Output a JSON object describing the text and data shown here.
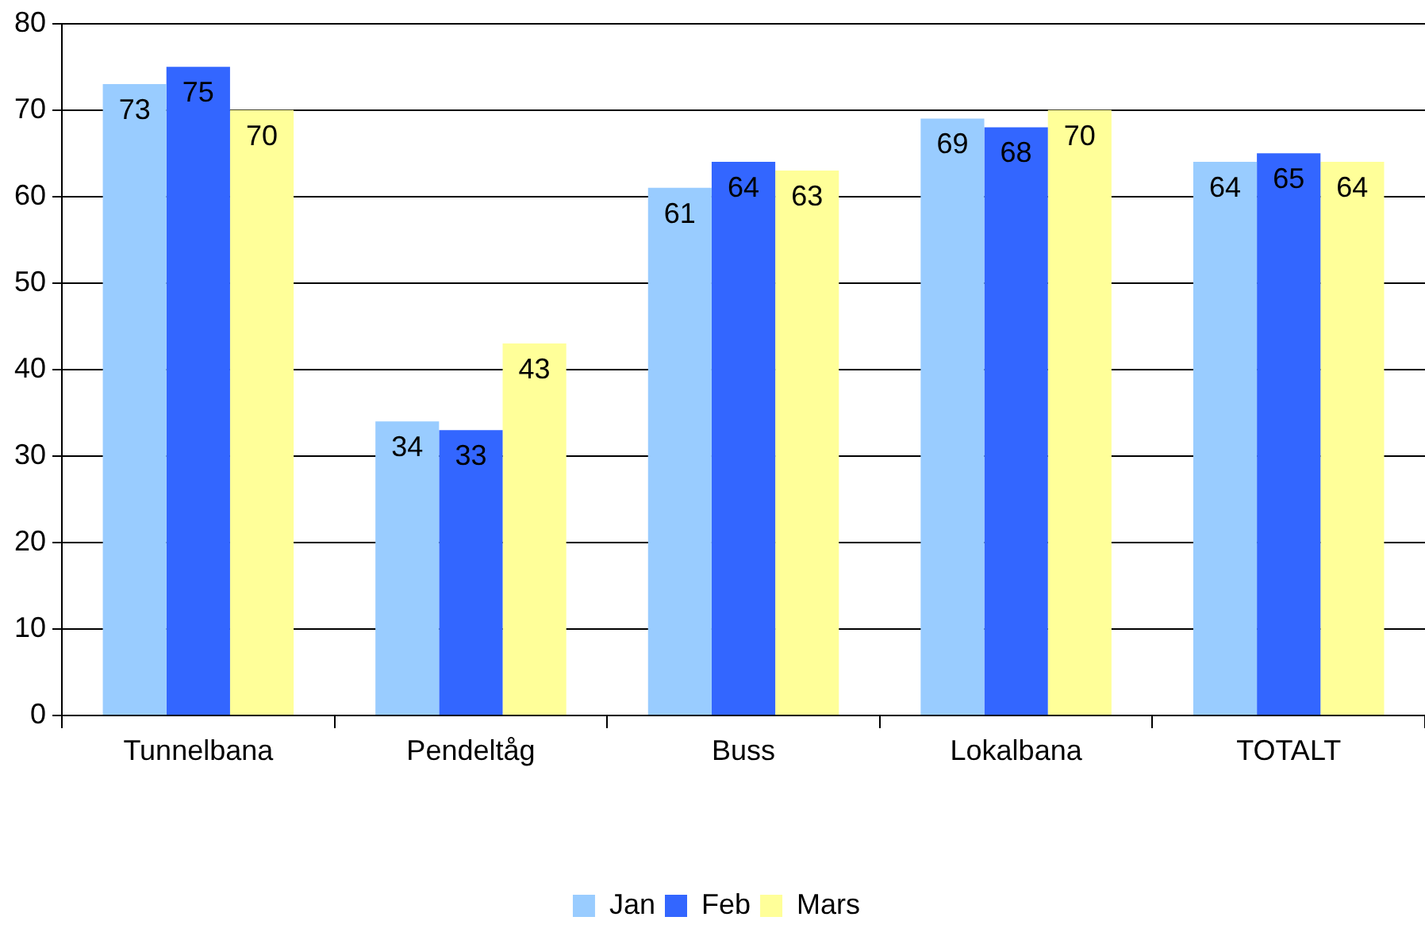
{
  "chart_data": {
    "type": "bar",
    "categories": [
      "Tunnelbana",
      "Pendeltåg",
      "Buss",
      "Lokalbana",
      "TOTALT"
    ],
    "series": [
      {
        "name": "Jan",
        "color": "#99ccff",
        "values": [
          73,
          34,
          61,
          69,
          64
        ]
      },
      {
        "name": "Feb",
        "color": "#3366ff",
        "values": [
          75,
          33,
          64,
          68,
          65
        ]
      },
      {
        "name": "Mars",
        "color": "#ffff99",
        "values": [
          70,
          43,
          63,
          70,
          64
        ]
      }
    ],
    "ylim": [
      0,
      80
    ],
    "yticks": [
      0,
      10,
      20,
      30,
      40,
      50,
      60,
      70,
      80
    ],
    "grid": "y",
    "legend": "bottom",
    "data_labels": true
  }
}
